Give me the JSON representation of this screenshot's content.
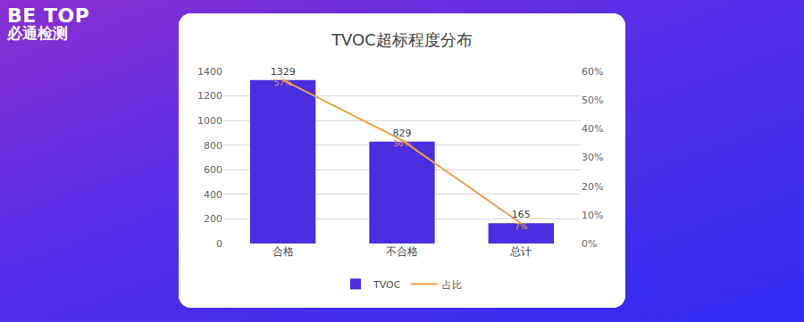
{
  "logo": [
    "BE TOP",
    "必通检测"
  ],
  "chart_data": {
    "type": "bar",
    "title": "TVOC超标程度分布",
    "categories": [
      "合格",
      "不合格",
      "总计"
    ],
    "series": [
      {
        "name": "TVOC",
        "type": "bar",
        "color": "#4a2ee0",
        "values": [
          1329,
          829,
          165
        ],
        "data_labels": true
      },
      {
        "name": "占比",
        "type": "line",
        "color": "#f0a04b",
        "axis": "y2",
        "values": [
          57,
          36,
          7
        ],
        "value_labels": [
          "57%",
          "36%",
          "7%"
        ],
        "data_labels": true
      }
    ],
    "ylim": [
      0,
      1400
    ],
    "yticks": [
      0,
      200,
      400,
      600,
      800,
      1000,
      1200,
      1400
    ],
    "y2lim": [
      0,
      60
    ],
    "y2ticks": [
      {
        "value": 0,
        "label": "0%"
      },
      {
        "value": 10,
        "label": "10%"
      },
      {
        "value": 20,
        "label": "20%"
      },
      {
        "value": 30,
        "label": "30%"
      },
      {
        "value": 40,
        "label": "40%"
      },
      {
        "value": 50,
        "label": "50%"
      },
      {
        "value": 60,
        "label": "60%"
      }
    ],
    "grid": true,
    "legend": "bottom"
  }
}
